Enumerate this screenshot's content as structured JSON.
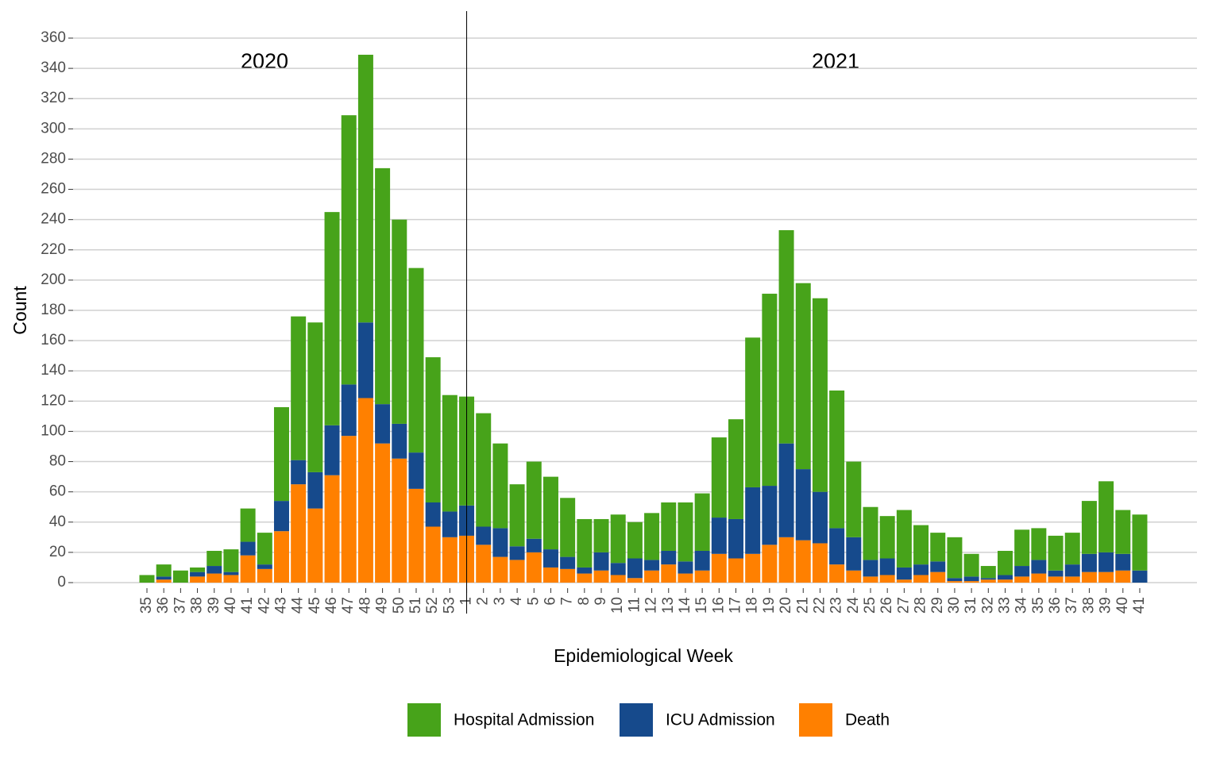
{
  "chart_data": {
    "type": "stacked-bar",
    "x_label": "Epidemiological Week",
    "y_label": "Count",
    "annotations": [
      "2020",
      "2021"
    ],
    "categories": [
      "35",
      "36",
      "37",
      "38",
      "39",
      "40",
      "41",
      "42",
      "43",
      "44",
      "45",
      "46",
      "47",
      "48",
      "49",
      "50",
      "51",
      "52",
      "53",
      "1",
      "2",
      "3",
      "4",
      "5",
      "6",
      "7",
      "8",
      "9",
      "10",
      "11",
      "12",
      "13",
      "14",
      "15",
      "16",
      "17",
      "18",
      "19",
      "20",
      "21",
      "22",
      "23",
      "24",
      "25",
      "26",
      "27",
      "28",
      "29",
      "30",
      "31",
      "32",
      "33",
      "34",
      "35",
      "36",
      "37",
      "38",
      "39",
      "40",
      "41"
    ],
    "series": [
      {
        "name": "Death",
        "color": "#ff8000",
        "values": [
          0,
          2,
          0,
          4,
          6,
          5,
          18,
          9,
          34,
          65,
          49,
          71,
          97,
          122,
          92,
          82,
          62,
          37,
          30,
          31,
          25,
          17,
          15,
          20,
          10,
          9,
          6,
          8,
          5,
          3,
          8,
          12,
          6,
          8,
          19,
          16,
          19,
          25,
          30,
          28,
          26,
          12,
          8,
          4,
          5,
          2,
          5,
          7,
          1,
          1,
          2,
          2,
          4,
          6,
          4,
          4,
          7,
          7,
          8,
          0
        ]
      },
      {
        "name": "ICU Admission",
        "color": "#164a8c",
        "values": [
          0,
          2,
          0,
          3,
          5,
          2,
          9,
          3,
          20,
          16,
          24,
          33,
          34,
          50,
          26,
          23,
          24,
          16,
          17,
          20,
          12,
          19,
          9,
          9,
          12,
          8,
          4,
          12,
          8,
          13,
          7,
          9,
          8,
          13,
          24,
          26,
          44,
          39,
          62,
          47,
          34,
          24,
          22,
          11,
          11,
          8,
          7,
          7,
          2,
          3,
          1,
          3,
          7,
          9,
          4,
          8,
          12,
          13,
          11,
          8
        ]
      },
      {
        "name": "Hospital Admission",
        "color": "#47a31a",
        "values": [
          5,
          8,
          8,
          3,
          10,
          15,
          22,
          21,
          62,
          95,
          99,
          141,
          178,
          177,
          156,
          135,
          122,
          96,
          77,
          72,
          75,
          56,
          41,
          51,
          48,
          39,
          32,
          22,
          32,
          24,
          31,
          32,
          39,
          38,
          53,
          66,
          99,
          127,
          141,
          123,
          128,
          91,
          50,
          35,
          28,
          38,
          26,
          19,
          27,
          15,
          8,
          16,
          24,
          21,
          23,
          21,
          35,
          47,
          29,
          37
        ]
      }
    ],
    "ylim": [
      0,
      360
    ],
    "yticks": [
      0,
      20,
      40,
      60,
      80,
      100,
      120,
      140,
      160,
      180,
      200,
      220,
      240,
      260,
      280,
      300,
      320,
      340,
      360
    ],
    "grid": true
  }
}
